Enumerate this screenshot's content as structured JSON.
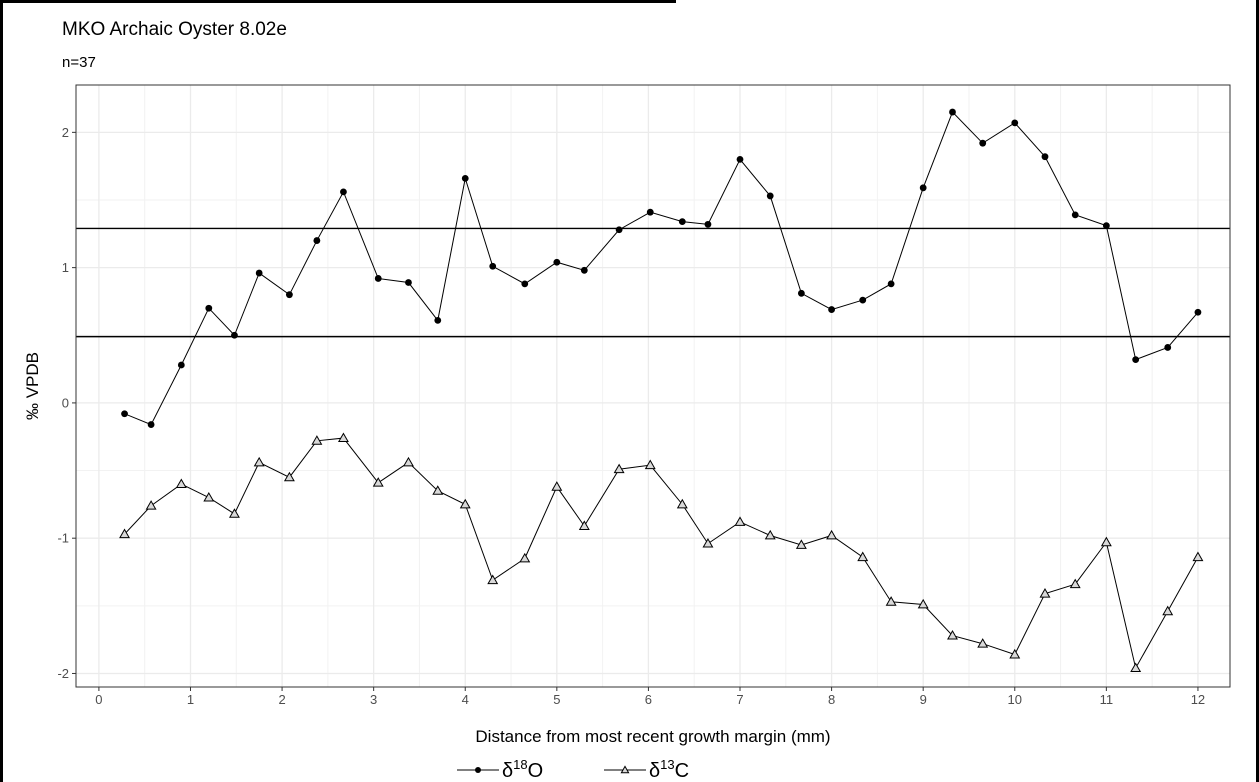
{
  "chart_data": {
    "type": "line",
    "title": "MKO Archaic Oyster 8.02e",
    "subtitle": "n=37",
    "xlabel": "Distance from most recent growth margin (mm)",
    "ylabel": "‰ VPDB",
    "xlim": [
      -0.25,
      12.35
    ],
    "ylim": [
      -2.1,
      2.35
    ],
    "x_ticks": [
      0,
      1,
      2,
      3,
      4,
      5,
      6,
      7,
      8,
      9,
      10,
      11,
      12
    ],
    "y_ticks": [
      -2,
      -1,
      0,
      1,
      2
    ],
    "grid": true,
    "legend_position": "bottom",
    "reference_lines": [
      1.29,
      0.49
    ],
    "x": [
      0.28,
      0.57,
      0.9,
      1.2,
      1.48,
      1.75,
      2.08,
      2.38,
      2.67,
      3.05,
      3.38,
      3.7,
      4.0,
      4.3,
      4.65,
      5.0,
      5.3,
      5.68,
      6.02,
      6.37,
      6.65,
      7.0,
      7.33,
      7.67,
      8.0,
      8.34,
      8.65,
      9.0,
      9.32,
      9.65,
      10.0,
      10.33,
      10.66,
      11.0,
      11.32,
      11.67,
      12.0
    ],
    "series": [
      {
        "name": "δ18O",
        "legend_text": "δ",
        "legend_sup": "18",
        "legend_elem": "O",
        "marker": "circle",
        "values": [
          -0.08,
          -0.16,
          0.28,
          0.7,
          0.5,
          0.96,
          0.8,
          1.2,
          1.56,
          0.92,
          0.89,
          0.61,
          1.66,
          1.01,
          0.88,
          1.04,
          0.98,
          1.28,
          1.41,
          1.34,
          1.32,
          1.8,
          1.53,
          0.81,
          0.69,
          0.76,
          0.88,
          1.59,
          2.15,
          1.92,
          2.07,
          1.82,
          1.39,
          1.31,
          0.32,
          0.41,
          0.67
        ]
      },
      {
        "name": "δ13C",
        "legend_text": "δ",
        "legend_sup": "13",
        "legend_elem": "C",
        "marker": "triangle",
        "values": [
          -0.97,
          -0.76,
          -0.6,
          -0.7,
          -0.82,
          -0.44,
          -0.55,
          -0.28,
          -0.26,
          -0.59,
          -0.44,
          -0.65,
          -0.75,
          -1.31,
          -1.15,
          -0.62,
          -0.91,
          -0.49,
          -0.46,
          -0.75,
          -1.04,
          -0.88,
          -0.98,
          -1.05,
          -0.98,
          -1.14,
          -1.47,
          -1.49,
          -1.72,
          -1.78,
          -1.86,
          -1.41,
          -1.34,
          -1.03,
          -1.96,
          -1.54,
          -1.14
        ]
      }
    ]
  }
}
